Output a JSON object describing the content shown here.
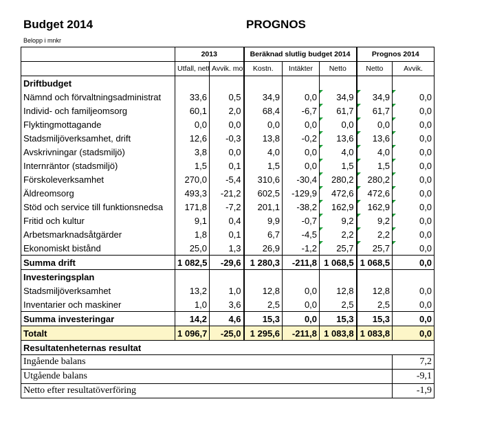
{
  "header": {
    "title": "Budget 2014",
    "prognos": "PROGNOS",
    "unit": "Belopp i mnkr"
  },
  "groups": {
    "g2013": "2013",
    "berakn": "Beräknad slutlig budget 2014",
    "prog": "Prognos 2014"
  },
  "cols": {
    "utfall": "Utfall, netto",
    "avvik_mot": "Avvik. mot budget",
    "kostn": "Kostn.",
    "intakter": "Intäkter",
    "netto": "Netto",
    "netto2": "Netto",
    "avvik": "Avvik."
  },
  "sections": {
    "drift": "Driftbudget",
    "invest": "Investeringsplan",
    "result": "Resultatenheternas resultat"
  },
  "rows": [
    {
      "label": "Nämnd och förvaltningsadministrat",
      "v": [
        "33,6",
        "0,5",
        "34,9",
        "0,0",
        "34,9",
        "34,9",
        "0,0"
      ]
    },
    {
      "label": "Individ- och familjeomsorg",
      "v": [
        "60,1",
        "2,0",
        "68,4",
        "-6,7",
        "61,7",
        "61,7",
        "0,0"
      ]
    },
    {
      "label": "Flyktingmottagande",
      "v": [
        "0,0",
        "0,0",
        "0,0",
        "0,0",
        "0,0",
        "0,0",
        "0,0"
      ]
    },
    {
      "label": "Stadsmiljöverksamhet, drift",
      "v": [
        "12,6",
        "-0,3",
        "13,8",
        "-0,2",
        "13,6",
        "13,6",
        "0,0"
      ]
    },
    {
      "label": "Avskrivningar (stadsmiljö)",
      "v": [
        "3,8",
        "0,0",
        "4,0",
        "0,0",
        "4,0",
        "4,0",
        "0,0"
      ]
    },
    {
      "label": "Internräntor (stadsmiljö)",
      "v": [
        "1,5",
        "0,1",
        "1,5",
        "0,0",
        "1,5",
        "1,5",
        "0,0"
      ]
    },
    {
      "label": "Förskoleverksamhet",
      "v": [
        "270,0",
        "-5,4",
        "310,6",
        "-30,4",
        "280,2",
        "280,2",
        "0,0"
      ]
    },
    {
      "label": "Äldreomsorg",
      "v": [
        "493,3",
        "-21,2",
        "602,5",
        "-129,9",
        "472,6",
        "472,6",
        "0,0"
      ]
    },
    {
      "label": "Stöd och service till funktionsnedsa",
      "v": [
        "171,8",
        "-7,2",
        "201,1",
        "-38,2",
        "162,9",
        "162,9",
        "0,0"
      ]
    },
    {
      "label": "Fritid och kultur",
      "v": [
        "9,1",
        "0,4",
        "9,9",
        "-0,7",
        "9,2",
        "9,2",
        "0,0"
      ]
    },
    {
      "label": "Arbetsmarknadsåtgärder",
      "v": [
        "1,8",
        "0,1",
        "6,7",
        "-4,5",
        "2,2",
        "2,2",
        "0,0"
      ]
    },
    {
      "label": "Ekonomiskt bistånd",
      "v": [
        "25,0",
        "1,3",
        "26,9",
        "-1,2",
        "25,7",
        "25,7",
        "0,0"
      ]
    }
  ],
  "summa_drift": {
    "label": "Summa drift",
    "v": [
      "1 082,5",
      "-29,6",
      "1 280,3",
      "-211,8",
      "1 068,5",
      "1 068,5",
      "0,0"
    ]
  },
  "invest_rows": [
    {
      "label": "Stadsmiljöverksamhet",
      "v": [
        "13,2",
        "1,0",
        "12,8",
        "0,0",
        "12,8",
        "12,8",
        "0,0"
      ]
    },
    {
      "label": "Inventarier och maskiner",
      "v": [
        "1,0",
        "3,6",
        "2,5",
        "0,0",
        "2,5",
        "2,5",
        "0,0"
      ]
    }
  ],
  "summa_invest": {
    "label": "Summa investeringar",
    "v": [
      "14,2",
      "4,6",
      "15,3",
      "0,0",
      "15,3",
      "15,3",
      "0,0"
    ]
  },
  "total": {
    "label": "Totalt",
    "v": [
      "1 096,7",
      "-25,0",
      "1 295,6",
      "-211,8",
      "1 083,8",
      "1 083,8",
      "0,0"
    ]
  },
  "result_rows": [
    {
      "label": "Ingående balans",
      "value": "7,2"
    },
    {
      "label": "Utgående balans",
      "value": "-9,1"
    },
    {
      "label": "Netto efter resultatöverföring",
      "value": "-1,9"
    }
  ],
  "colors": {
    "total_row": "#fdf6c8",
    "cell_marker": "#1f9d3a"
  }
}
